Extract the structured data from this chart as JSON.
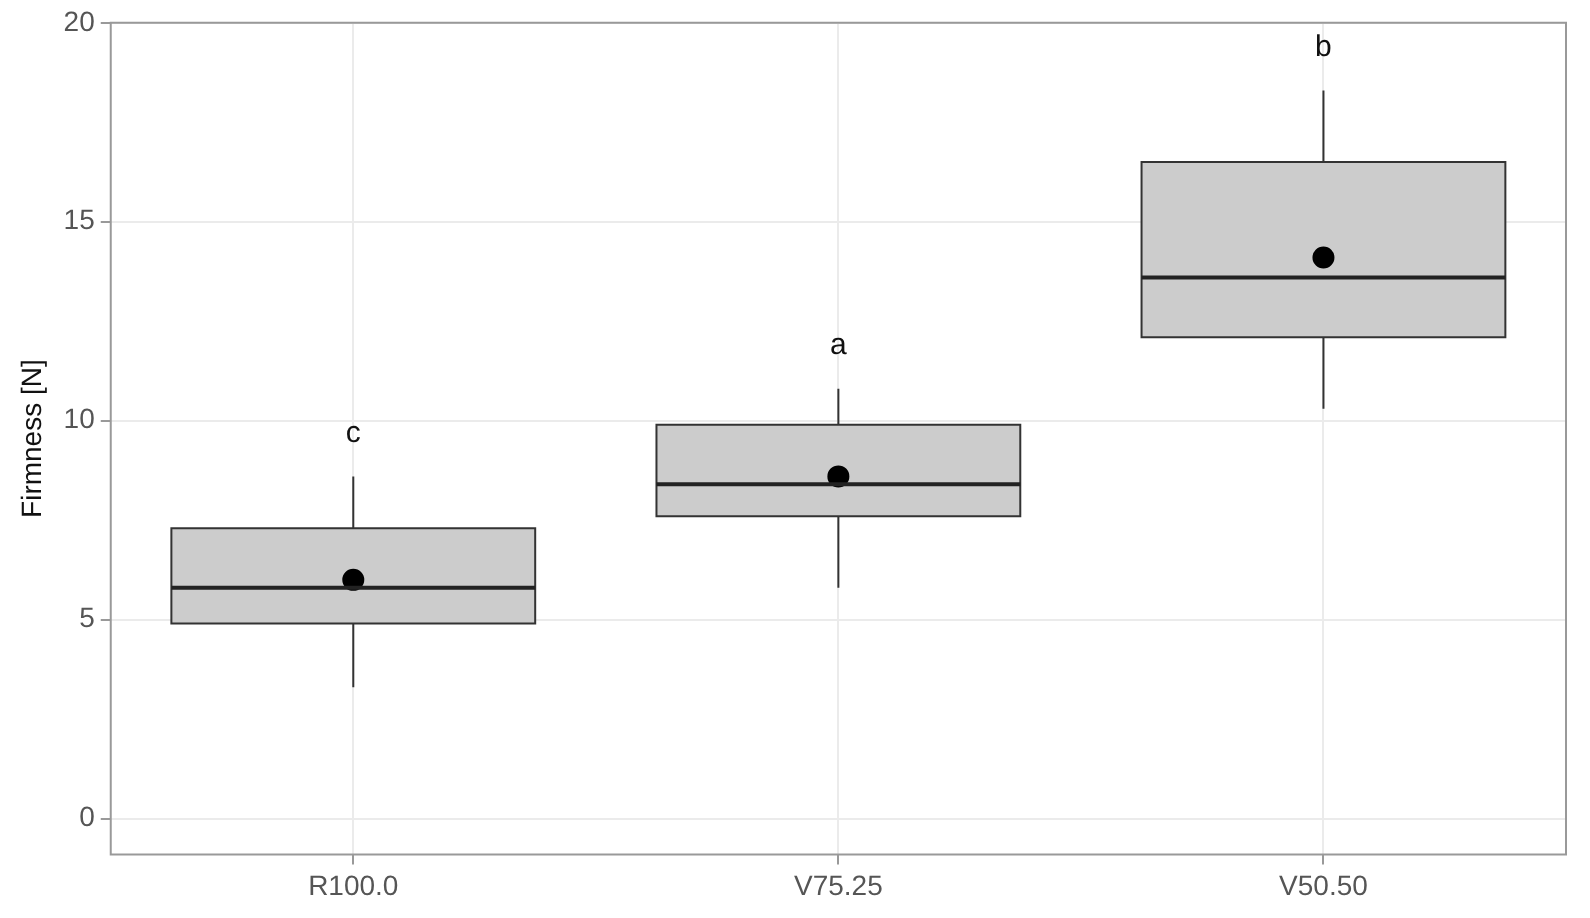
{
  "chart_data": {
    "type": "box",
    "ylabel": "Firmness [N]",
    "categories": [
      "R100.0",
      "V75.25",
      "V50.50"
    ],
    "series": [
      {
        "color": "#cccccc",
        "boxes": [
          {
            "low": 3.3,
            "q1": 4.9,
            "median": 5.8,
            "q3": 7.3,
            "high": 8.6,
            "mean": 6.0
          },
          {
            "low": 5.8,
            "q1": 7.6,
            "median": 8.4,
            "q3": 9.9,
            "high": 10.8,
            "mean": 8.6
          },
          {
            "low": 10.3,
            "q1": 12.1,
            "median": 13.6,
            "q3": 16.5,
            "high": 18.3,
            "mean": 14.1
          }
        ]
      }
    ],
    "ylim": [
      -0.9,
      20
    ],
    "yticks": [
      0,
      5,
      10,
      15,
      20
    ],
    "grid": true,
    "annotations": [
      "c",
      "a",
      "b"
    ]
  }
}
